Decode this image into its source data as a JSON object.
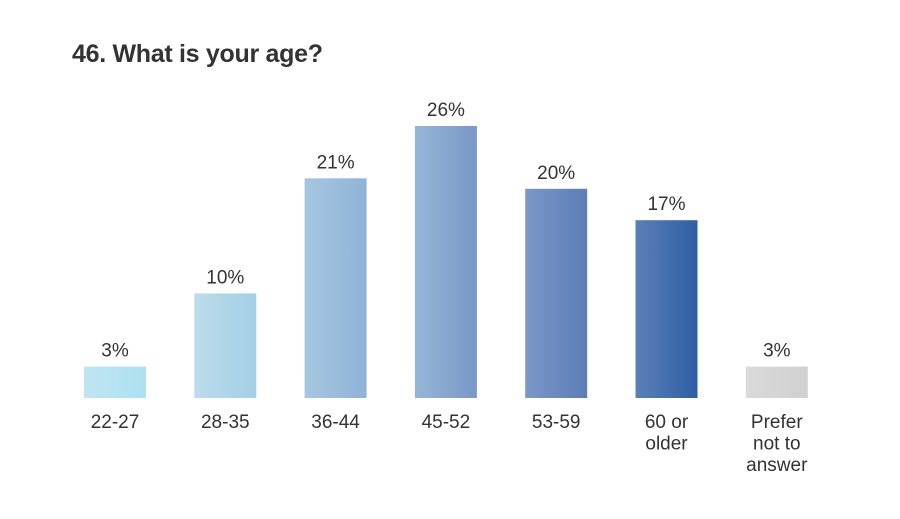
{
  "chart_data": {
    "type": "bar",
    "title": "46. What is your age?",
    "categories": [
      "22-27",
      "28-35",
      "36-44",
      "45-52",
      "53-59",
      "60 or older",
      "Prefer not to answer"
    ],
    "category_lines": [
      [
        "22-27"
      ],
      [
        "28-35"
      ],
      [
        "36-44"
      ],
      [
        "45-52"
      ],
      [
        "53-59"
      ],
      [
        "60 or",
        "older"
      ],
      [
        "Prefer",
        "not to",
        "answer"
      ]
    ],
    "values": [
      3,
      10,
      21,
      26,
      20,
      17,
      3
    ],
    "value_labels": [
      "3%",
      "10%",
      "21%",
      "26%",
      "20%",
      "17%",
      "3%"
    ],
    "unit": "%",
    "xlabel": "",
    "ylabel": "",
    "ylim": [
      0,
      26
    ],
    "grid": false,
    "legend": "none",
    "colors": [
      [
        "#bfe5f2",
        "#ade0f0"
      ],
      [
        "#bbdcec",
        "#a4cfe5"
      ],
      [
        "#a6c6e0",
        "#8fb4d6"
      ],
      [
        "#97b6d8",
        "#7898c6"
      ],
      [
        "#7b98c8",
        "#5b7db7"
      ],
      [
        "#5b80b8",
        "#2f5ea5"
      ],
      [
        "#dadada",
        "#d0d0d0"
      ]
    ]
  }
}
